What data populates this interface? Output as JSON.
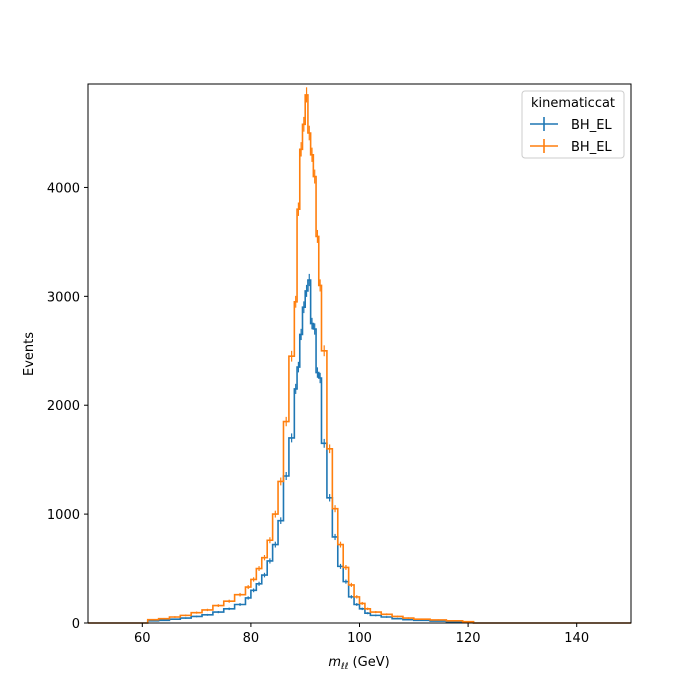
{
  "chart_data": {
    "type": "step-histogram",
    "xlabel": "m_ll (GeV)",
    "xlabel_main": "m",
    "xlabel_sub": "ℓℓ",
    "xlabel_unit": " (GeV)",
    "ylabel": "Events",
    "xlim": [
      50,
      150
    ],
    "ylim": [
      0,
      4950
    ],
    "x_ticks": [
      60,
      80,
      100,
      120,
      140
    ],
    "y_ticks": [
      0,
      1000,
      2000,
      3000,
      4000
    ],
    "grid": false,
    "legend": {
      "title": "kinematiccat",
      "placement": "top-right"
    },
    "series": [
      {
        "name": "BH_EL",
        "color": "#1f77b4",
        "points": [
          [
            50,
            0
          ],
          [
            60,
            0
          ],
          [
            61,
            20
          ],
          [
            63,
            25
          ],
          [
            65,
            35
          ],
          [
            67,
            45
          ],
          [
            69,
            60
          ],
          [
            71,
            75
          ],
          [
            73,
            100
          ],
          [
            75,
            130
          ],
          [
            77,
            170
          ],
          [
            79,
            230
          ],
          [
            80,
            300
          ],
          [
            81,
            360
          ],
          [
            82,
            440
          ],
          [
            83,
            570
          ],
          [
            84,
            720
          ],
          [
            85,
            940
          ],
          [
            86,
            1350
          ],
          [
            87,
            1700
          ],
          [
            88,
            2150
          ],
          [
            88.5,
            2350
          ],
          [
            89,
            2650
          ],
          [
            89.5,
            2900
          ],
          [
            90,
            3050
          ],
          [
            90.5,
            3150
          ],
          [
            91,
            2750
          ],
          [
            91.5,
            2700
          ],
          [
            92,
            2300
          ],
          [
            92.5,
            2250
          ],
          [
            93,
            1650
          ],
          [
            94,
            1150
          ],
          [
            95,
            790
          ],
          [
            96,
            520
          ],
          [
            97,
            380
          ],
          [
            98,
            240
          ],
          [
            99,
            170
          ],
          [
            100,
            130
          ],
          [
            101,
            90
          ],
          [
            102,
            70
          ],
          [
            104,
            55
          ],
          [
            106,
            40
          ],
          [
            108,
            30
          ],
          [
            110,
            25
          ],
          [
            113,
            18
          ],
          [
            116,
            12
          ],
          [
            119,
            8
          ],
          [
            121,
            0
          ],
          [
            150,
            0
          ]
        ]
      },
      {
        "name": "BH_EL",
        "color": "#ff7f0e",
        "points": [
          [
            50,
            0
          ],
          [
            60,
            0
          ],
          [
            61,
            30
          ],
          [
            63,
            40
          ],
          [
            65,
            55
          ],
          [
            67,
            70
          ],
          [
            69,
            95
          ],
          [
            71,
            120
          ],
          [
            73,
            160
          ],
          [
            75,
            200
          ],
          [
            77,
            260
          ],
          [
            79,
            330
          ],
          [
            80,
            400
          ],
          [
            81,
            500
          ],
          [
            82,
            600
          ],
          [
            83,
            760
          ],
          [
            84,
            1000
          ],
          [
            85,
            1300
          ],
          [
            86,
            1850
          ],
          [
            87,
            2450
          ],
          [
            88,
            2950
          ],
          [
            88.5,
            3800
          ],
          [
            89,
            4350
          ],
          [
            89.5,
            4580
          ],
          [
            90,
            4850
          ],
          [
            90.5,
            4500
          ],
          [
            91,
            4300
          ],
          [
            91.5,
            4100
          ],
          [
            92,
            3550
          ],
          [
            92.5,
            3100
          ],
          [
            93,
            2500
          ],
          [
            94,
            1600
          ],
          [
            95,
            1050
          ],
          [
            96,
            720
          ],
          [
            97,
            510
          ],
          [
            98,
            350
          ],
          [
            99,
            240
          ],
          [
            100,
            180
          ],
          [
            101,
            130
          ],
          [
            102,
            100
          ],
          [
            104,
            80
          ],
          [
            106,
            60
          ],
          [
            108,
            45
          ],
          [
            110,
            35
          ],
          [
            113,
            28
          ],
          [
            116,
            20
          ],
          [
            119,
            12
          ],
          [
            121,
            0
          ],
          [
            150,
            0
          ]
        ]
      }
    ]
  }
}
